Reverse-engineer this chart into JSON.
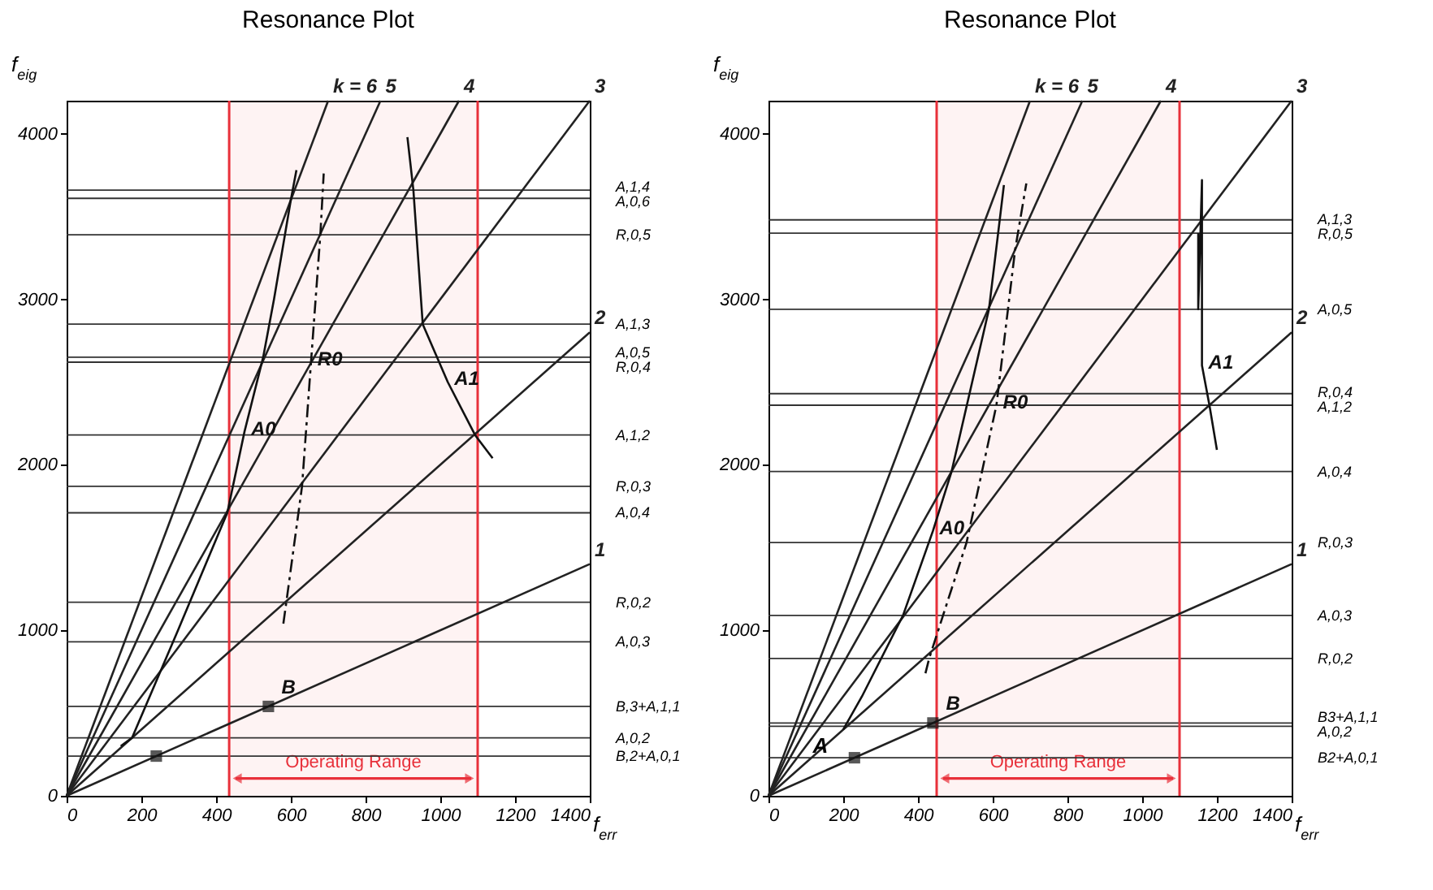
{
  "chart_data": [
    {
      "type": "line",
      "title": "Resonance Plot",
      "xlabel": "f$_{err}$",
      "ylabel": "f$_{eig}$",
      "xlim": [
        0,
        1400
      ],
      "ylim": [
        0,
        4200
      ],
      "xticks": [
        0,
        200,
        400,
        600,
        800,
        1000,
        1200,
        1400
      ],
      "yticks": [
        0,
        1000,
        2000,
        3000,
        4000
      ],
      "marker": "none",
      "series": [
        {
          "name": "1",
          "color": "#222222",
          "x": [
            0,
            1400
          ],
          "values": [
            0,
            1400
          ]
        },
        {
          "name": "2",
          "color": "#222222",
          "x": [
            0,
            1400
          ],
          "values": [
            0,
            2800
          ]
        },
        {
          "name": "3",
          "color": "#222222",
          "x": [
            0,
            1400
          ],
          "values": [
            0,
            4200
          ]
        },
        {
          "name": "4",
          "color": "#222222",
          "x": [
            0,
            1050
          ],
          "values": [
            0,
            4200
          ]
        },
        {
          "name": "5",
          "color": "#222222",
          "x": [
            0,
            840
          ],
          "values": [
            0,
            4200
          ]
        },
        {
          "name": "k = 6",
          "color": "#222222",
          "x": [
            0,
            700
          ],
          "values": [
            0,
            4200
          ]
        },
        {
          "name": "A0",
          "color": "#111111",
          "x": [
            145,
            175,
            298,
            430,
            476,
            526,
            555,
            600,
            615
          ],
          "values": [
            300,
            350,
            1000,
            1710,
            2200,
            2650,
            3000,
            3600,
            3780
          ]
        },
        {
          "name": "R0",
          "color": "#111111",
          "line_style": "dashed",
          "x": [
            580,
            588,
            630,
            654,
            679,
            688
          ],
          "values": [
            1040,
            1170,
            1870,
            2620,
            3390,
            3760
          ]
        },
        {
          "name": "A1",
          "color": "#111111",
          "x": [
            912,
            928,
            953,
            1020,
            1093,
            1140
          ],
          "values": [
            3980,
            3660,
            2850,
            2500,
            2180,
            2040
          ]
        },
        {
          "name": "B",
          "type": "scatter",
          "marker": "square",
          "color": "#111111",
          "x": [
            240,
            540
          ],
          "values": [
            240,
            540
          ]
        }
      ],
      "ref_lines": [
        {
          "axis": "y",
          "value": 3660,
          "label": "A,1,4"
        },
        {
          "axis": "y",
          "value": 3610,
          "label": "A,0,6"
        },
        {
          "axis": "y",
          "value": 3390,
          "label": "R,0,5"
        },
        {
          "axis": "y",
          "value": 2850,
          "label": "A,1,3"
        },
        {
          "axis": "y",
          "value": 2650,
          "label": "A,0,5"
        },
        {
          "axis": "y",
          "value": 2620,
          "label": "R,0,4"
        },
        {
          "axis": "y",
          "value": 2180,
          "label": "A,1,2"
        },
        {
          "axis": "y",
          "value": 1870,
          "label": "R,0,3"
        },
        {
          "axis": "y",
          "value": 1710,
          "label": "A,0,4"
        },
        {
          "axis": "y",
          "value": 1170,
          "label": "R,0,2"
        },
        {
          "axis": "y",
          "value": 930,
          "label": "A,0,3"
        },
        {
          "axis": "y",
          "value": 540,
          "label": "B,3+A,1,1"
        },
        {
          "axis": "y",
          "value": 350,
          "label": "A,0,2"
        },
        {
          "axis": "y",
          "value": 240,
          "label": "B,2+A,0,1"
        },
        {
          "axis": "x",
          "value": 435,
          "color": "#e8303a"
        },
        {
          "axis": "x",
          "value": 1100,
          "color": "#e8303a"
        }
      ],
      "bands": [
        {
          "axis": "x",
          "from": 435,
          "to": 1100,
          "label": "Operating Range",
          "color": "#e8303a"
        }
      ]
    },
    {
      "type": "line",
      "title": "Resonance Plot",
      "xlabel": "f$_{err}$",
      "ylabel": "f$_{eig}$",
      "xlim": [
        0,
        1400
      ],
      "ylim": [
        0,
        4200
      ],
      "xticks": [
        0,
        200,
        400,
        600,
        800,
        1000,
        1200,
        1400
      ],
      "yticks": [
        0,
        1000,
        2000,
        3000,
        4000
      ],
      "marker": "none",
      "series": [
        {
          "name": "1",
          "color": "#222222",
          "x": [
            0,
            1400
          ],
          "values": [
            0,
            1400
          ]
        },
        {
          "name": "2",
          "color": "#222222",
          "x": [
            0,
            1400
          ],
          "values": [
            0,
            2800
          ]
        },
        {
          "name": "3",
          "color": "#222222",
          "x": [
            0,
            1400
          ],
          "values": [
            0,
            4200
          ]
        },
        {
          "name": "4",
          "color": "#222222",
          "x": [
            0,
            1050
          ],
          "values": [
            0,
            4200
          ]
        },
        {
          "name": "5",
          "color": "#222222",
          "x": [
            0,
            840
          ],
          "values": [
            0,
            4200
          ]
        },
        {
          "name": "k = 6",
          "color": "#222222",
          "x": [
            0,
            700
          ],
          "values": [
            0,
            4200
          ]
        },
        {
          "name": "A0",
          "color": "#111111",
          "x": [
            200,
            250,
            360,
            440,
            490,
            590,
            630
          ],
          "values": [
            400,
            600,
            1090,
            1600,
            1960,
            2940,
            3690
          ]
        },
        {
          "name": "R0",
          "color": "#111111",
          "line_style": "dashed",
          "x": [
            420,
            430,
            530,
            610,
            660,
            690
          ],
          "values": [
            740,
            830,
            1530,
            2360,
            3300,
            3700
          ]
        },
        {
          "name": "A1",
          "color": "#111111",
          "x": [
            1160,
            1150,
            1150,
            1160,
            1180,
            1200
          ],
          "values": [
            3720,
            3400,
            2940,
            2600,
            2360,
            2090
          ]
        },
        {
          "name": "B",
          "type": "scatter",
          "marker": "square",
          "color": "#111111",
          "x": [
            230,
            440
          ],
          "values": [
            230,
            440
          ]
        }
      ],
      "ref_lines": [
        {
          "axis": "y",
          "value": 3480,
          "label": "A,1,3"
        },
        {
          "axis": "y",
          "value": 3400,
          "label": "R,0,5"
        },
        {
          "axis": "y",
          "value": 2940,
          "label": "A,0,5"
        },
        {
          "axis": "y",
          "value": 2430,
          "label": "R,0,4"
        },
        {
          "axis": "y",
          "value": 2360,
          "label": "A,1,2"
        },
        {
          "axis": "y",
          "value": 1960,
          "label": "A,0,4"
        },
        {
          "axis": "y",
          "value": 1530,
          "label": "R,0,3"
        },
        {
          "axis": "y",
          "value": 1090,
          "label": "A,0,3"
        },
        {
          "axis": "y",
          "value": 830,
          "label": "R,0,2"
        },
        {
          "axis": "y",
          "value": 440,
          "label": "B3+A,1,1"
        },
        {
          "axis": "y",
          "value": 420,
          "label": "A,0,2"
        },
        {
          "axis": "y",
          "value": 230,
          "label": "B2+A,0,1"
        },
        {
          "axis": "x",
          "value": 450,
          "color": "#e8303a"
        },
        {
          "axis": "x",
          "value": 1100,
          "color": "#e8303a"
        }
      ],
      "bands": [
        {
          "axis": "x",
          "from": 450,
          "to": 1100,
          "label": "Operating Range",
          "color": "#e8303a"
        }
      ],
      "annotations": [
        {
          "text": "A",
          "x": 165,
          "y": 300
        }
      ]
    }
  ]
}
